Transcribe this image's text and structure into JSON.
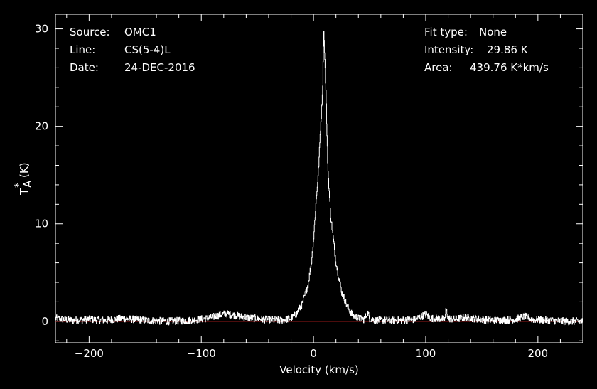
{
  "info": {
    "source_label": "Source:",
    "source_value": "OMC1",
    "line_label": "Line:",
    "line_value": "CS(5-4)L",
    "date_label": "Date:",
    "date_value": "24-DEC-2016",
    "fit_label": "Fit type:",
    "fit_value": "None",
    "intensity_label": "Intensity:",
    "intensity_value": "29.86 K",
    "area_label": "Area:",
    "area_value": "439.76 K*km/s"
  },
  "colors": {
    "background": "#000000",
    "foreground": "#ffffff",
    "baseline": "#cc2222"
  },
  "chart_data": {
    "type": "line",
    "xlabel": "Velocity (km/s)",
    "ylabel_main": "T",
    "ylabel_sup": "*",
    "ylabel_sub": "A",
    "ylabel_unit": "(K)",
    "xlim": [
      -230,
      240
    ],
    "ylim": [
      -2.2,
      31.5
    ],
    "xticks_major": [
      -200,
      -100,
      0,
      100,
      200
    ],
    "xtick_labels": [
      "−200",
      "−100",
      "0",
      "100",
      "200"
    ],
    "yticks_major": [
      0,
      10,
      20,
      30
    ],
    "ytick_labels": [
      "0",
      "10",
      "20",
      "30"
    ],
    "baseline_y": 0,
    "peak_intensity": 29.86,
    "series": [
      {
        "x": [
          -230,
          -215,
          -200,
          -185,
          -170,
          -150,
          -130,
          -110,
          -95,
          -85,
          -78,
          -70,
          -60,
          -45,
          -30,
          -20,
          -15,
          -10,
          -5,
          -2,
          0,
          2,
          4,
          5,
          6,
          7,
          8,
          9,
          10,
          11,
          12,
          13,
          15,
          18,
          20,
          25,
          30,
          35,
          40,
          45,
          48,
          50,
          55,
          60,
          75,
          90,
          100,
          105,
          112,
          117,
          118,
          120,
          125,
          135,
          150,
          165,
          180,
          188,
          195,
          210,
          225,
          240
        ],
        "y": [
          0.3,
          0.1,
          0.2,
          0.1,
          0.3,
          0.1,
          0.0,
          0.1,
          0.3,
          0.6,
          0.8,
          0.6,
          0.4,
          0.2,
          0.1,
          0.3,
          0.8,
          1.8,
          3.8,
          6.0,
          8.5,
          12.0,
          15.0,
          17.0,
          19.5,
          21.5,
          24.0,
          29.86,
          27.0,
          23.5,
          18.5,
          15.0,
          11.0,
          8.0,
          6.0,
          3.0,
          1.5,
          0.6,
          0.3,
          0.2,
          0.9,
          0.3,
          0.1,
          0.1,
          0.1,
          0.2,
          0.7,
          0.3,
          0.3,
          0.2,
          1.2,
          0.3,
          0.2,
          0.4,
          0.2,
          0.1,
          0.2,
          0.5,
          0.2,
          0.1,
          0.0,
          0.0
        ]
      }
    ]
  }
}
